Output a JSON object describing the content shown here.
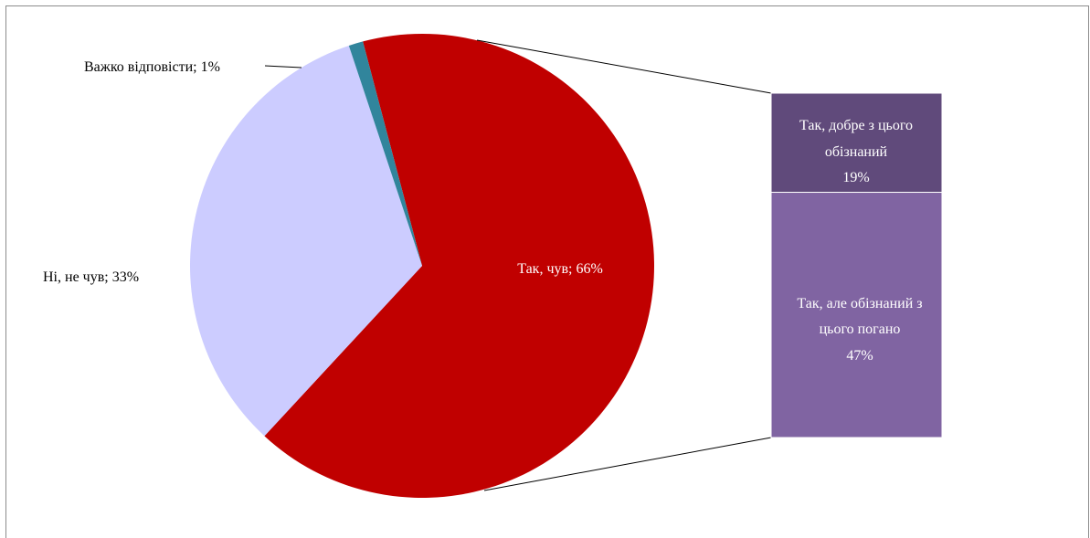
{
  "chart_data": {
    "type": "pie",
    "slices": [
      {
        "label": "Так, чув",
        "value": 66,
        "color": "#c00000",
        "text": "Так, чув; 66%"
      },
      {
        "label": "Ні, не чув",
        "value": 33,
        "color": "#ccccff",
        "text": "Ні, не чув; 33%"
      },
      {
        "label": "Важко відповісти",
        "value": 1,
        "color": "#31859c",
        "text": "Важко відповісти; 1%"
      }
    ],
    "breakdown": {
      "of_slice": "Так, чув",
      "type": "stacked-bar",
      "segments": [
        {
          "lines": [
            "Так, добре з цього",
            "обізнаний",
            "19%"
          ],
          "value": 19,
          "color": "#604a7b"
        },
        {
          "lines": [
            "Так, але обізнаний з",
            "цього погано",
            "47%"
          ],
          "value": 47,
          "color": "#8064a2"
        }
      ]
    }
  }
}
